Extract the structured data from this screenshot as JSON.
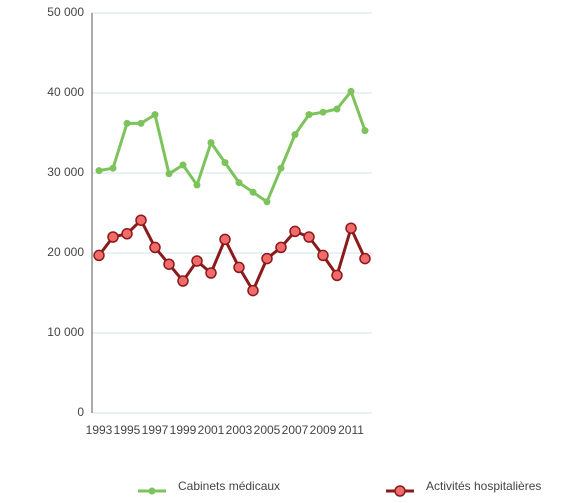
{
  "chart_data": {
    "type": "line",
    "categories": [
      "1993",
      null,
      "1995",
      null,
      "1997",
      null,
      "1999",
      null,
      "2001",
      null,
      "2003",
      null,
      "2005",
      null,
      "2007",
      null,
      "2009",
      null,
      "2011",
      null
    ],
    "series": [
      {
        "name": "Cabinets médicaux",
        "color": "#7dc35b",
        "values": [
          30300,
          30600,
          36200,
          36200,
          37300,
          29900,
          31000,
          28500,
          33800,
          31300,
          28800,
          27600,
          26400,
          30600,
          34800,
          37300,
          37600,
          38000,
          40200,
          35300
        ]
      },
      {
        "name": "Activités hospitalières",
        "color": "#8b1a1a",
        "marker_fill": "#f26b6b",
        "values": [
          19700,
          22000,
          22400,
          24100,
          20700,
          18600,
          16500,
          19000,
          17500,
          21700,
          18200,
          15300,
          19300,
          20700,
          22700,
          22000,
          19700,
          17200,
          23100,
          19300
        ]
      }
    ],
    "ylim": [
      0,
      50000
    ],
    "yticks": [
      0,
      {
        "value": 10000,
        "label": "10 000"
      },
      {
        "value": 20000,
        "label": "20 000"
      },
      {
        "value": 30000,
        "label": "30 000"
      },
      {
        "value": 40000,
        "label": "40 000"
      },
      {
        "value": 50000,
        "label": "50 000"
      }
    ],
    "grid": true
  }
}
